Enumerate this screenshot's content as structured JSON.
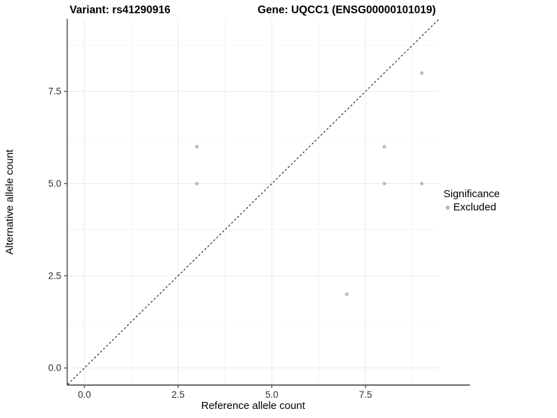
{
  "titles": {
    "left": "Variant: rs41290916",
    "right": "Gene: UQCC1 (ENSG00000101019)"
  },
  "chart_data": {
    "type": "scatter",
    "xlabel": "Reference allele count",
    "ylabel": "Alternative allele count",
    "xlim": [
      -0.45,
      9.45
    ],
    "ylim": [
      -0.45,
      9.45
    ],
    "major_ticks": {
      "values": [
        0,
        2.5,
        5,
        7.5
      ],
      "labels": [
        "0.0",
        "2.5",
        "5.0",
        "7.5"
      ]
    },
    "minor_tick_values": [
      1.25,
      3.75,
      6.25,
      8.75
    ],
    "points": [
      {
        "x": 3,
        "y": 5
      },
      {
        "x": 3,
        "y": 6
      },
      {
        "x": 7,
        "y": 2
      },
      {
        "x": 8,
        "y": 5
      },
      {
        "x": 8,
        "y": 6
      },
      {
        "x": 9,
        "y": 5
      },
      {
        "x": 9,
        "y": 8
      }
    ],
    "identity_line": {
      "style": "dashed",
      "slope": 1,
      "intercept": 0
    },
    "grid": true,
    "legend_position": "right",
    "colors": {
      "point": "#bdbdbd",
      "grid_major": "#e9e9e9",
      "grid_minor": "#f4f4f4",
      "axis_line": "#424242",
      "tick_text": "#303030",
      "identity_line": "#000000"
    }
  },
  "legend": {
    "title": "Significance",
    "items": [
      {
        "label": "Excluded",
        "color": "#b9b9b9"
      }
    ]
  }
}
